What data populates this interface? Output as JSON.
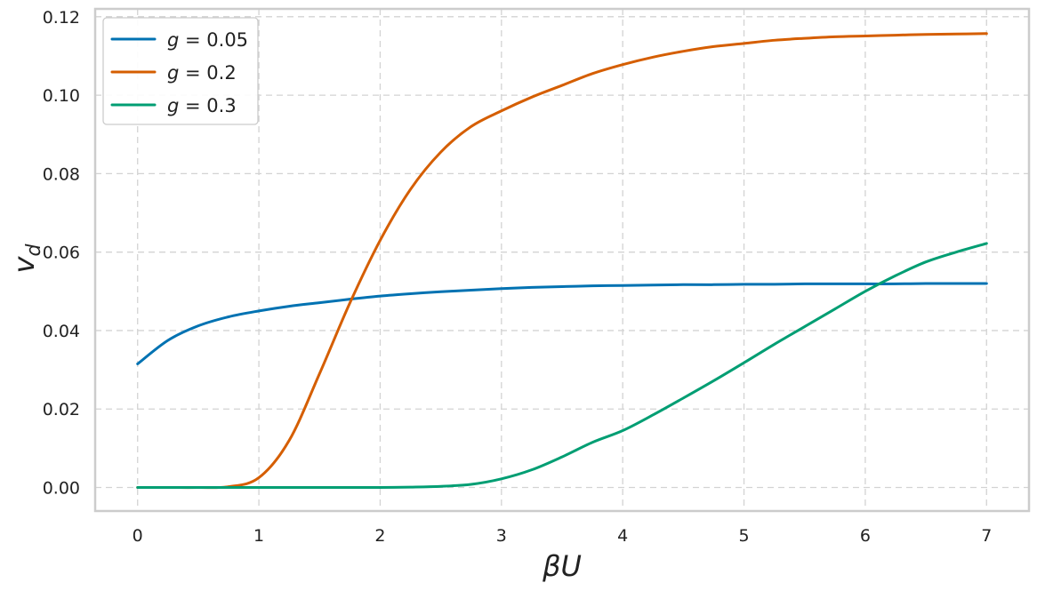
{
  "chart_data": {
    "type": "line",
    "title": "",
    "xlabel": "βU",
    "ylabel": "v_d",
    "xlim": [
      -0.35,
      7.35
    ],
    "ylim": [
      -0.006,
      0.122
    ],
    "grid": true,
    "legend_position": "top-left",
    "x_ticks": [
      0,
      1,
      2,
      3,
      4,
      5,
      6,
      7
    ],
    "x_tick_labels": [
      "0",
      "1",
      "2",
      "3",
      "4",
      "5",
      "6",
      "7"
    ],
    "y_ticks": [
      0.0,
      0.02,
      0.04,
      0.06,
      0.08,
      0.1,
      0.12
    ],
    "y_tick_labels": [
      "0.00",
      "0.02",
      "0.04",
      "0.06",
      "0.08",
      "0.10",
      "0.12"
    ],
    "x": [
      0,
      0.25,
      0.5,
      0.75,
      1,
      1.25,
      1.5,
      1.75,
      2,
      2.25,
      2.5,
      2.75,
      3,
      3.25,
      3.5,
      3.75,
      4,
      4.25,
      4.5,
      4.75,
      5,
      5.25,
      5.5,
      5.75,
      6,
      6.25,
      6.5,
      6.75,
      7
    ],
    "series": [
      {
        "name": "g = 0.05",
        "legend_var": "g",
        "legend_value": "= 0.05",
        "color": "#0072b2",
        "values": [
          0.0315,
          0.0375,
          0.0412,
          0.0435,
          0.045,
          0.0462,
          0.0471,
          0.048,
          0.0488,
          0.0494,
          0.0499,
          0.0503,
          0.0507,
          0.051,
          0.0512,
          0.0514,
          0.0515,
          0.0516,
          0.0517,
          0.0517,
          0.0518,
          0.0518,
          0.0519,
          0.0519,
          0.0519,
          0.0519,
          0.052,
          0.052,
          0.052
        ]
      },
      {
        "name": "g = 0.2",
        "legend_var": "g",
        "legend_value": "= 0.2",
        "color": "#d55e00",
        "values": [
          0.0,
          0.0,
          0.0,
          0.0002,
          0.0025,
          0.012,
          0.029,
          0.047,
          0.063,
          0.076,
          0.0855,
          0.092,
          0.096,
          0.0995,
          0.1025,
          0.1055,
          0.1078,
          0.1097,
          0.1112,
          0.1124,
          0.1132,
          0.114,
          0.1145,
          0.1149,
          0.1151,
          0.1153,
          0.1155,
          0.1156,
          0.1157
        ]
      },
      {
        "name": "g = 0.3",
        "legend_var": "g",
        "legend_value": "= 0.3",
        "color": "#009e73",
        "values": [
          0.0,
          0.0,
          0.0,
          0.0,
          0.0,
          0.0,
          0.0,
          0.0,
          0.0,
          0.0001,
          0.0003,
          0.0008,
          0.0022,
          0.0045,
          0.0078,
          0.0115,
          0.0145,
          0.0185,
          0.0228,
          0.0272,
          0.0318,
          0.0365,
          0.041,
          0.0455,
          0.05,
          0.054,
          0.0575,
          0.06,
          0.0622
        ]
      }
    ]
  }
}
